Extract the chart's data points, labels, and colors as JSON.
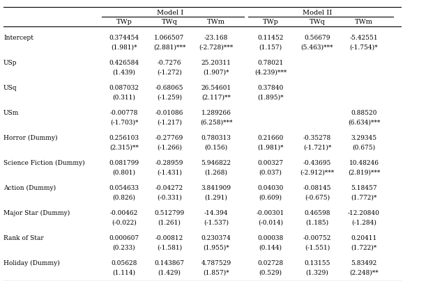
{
  "model1_header": "Model I",
  "model2_header": "Model II",
  "col_headers": [
    "TWp",
    "TWq",
    "TWm",
    "TWp",
    "TWq",
    "TWm"
  ],
  "rows": [
    {
      "label": "Intercept",
      "vals": [
        "0.374454",
        "1.066507",
        "-23.168",
        "0.11452",
        "0.56679",
        "-5.42551"
      ],
      "tstats": [
        "(1.981)*",
        "(2.881)***",
        "(-2.728)***",
        "(1.157)",
        "(5.463)***",
        "(-1.754)*"
      ]
    },
    {
      "label": "USp",
      "vals": [
        "0.426584",
        "-0.7276",
        "25.20311",
        "0.78021",
        "",
        ""
      ],
      "tstats": [
        "(1.439)",
        "(-1.272)",
        "(1.907)*",
        "(4.239)***",
        "",
        ""
      ]
    },
    {
      "label": "USq",
      "vals": [
        "0.087032",
        "-0.68065",
        "26.54601",
        "0.37840",
        "",
        ""
      ],
      "tstats": [
        "(0.311)",
        "(-1.259)",
        "(2.117)**",
        "(1.895)*",
        "",
        ""
      ]
    },
    {
      "label": "USm",
      "vals": [
        "-0.00778",
        "-0.01086",
        "1.289266",
        "",
        "",
        "0.88520"
      ],
      "tstats": [
        "(-1.703)*",
        "(-1.217)",
        "(6.258)***",
        "",
        "",
        "(6.634)***"
      ]
    },
    {
      "label": "Horror (Dummy)",
      "vals": [
        "0.256103",
        "-0.27769",
        "0.780313",
        "0.21660",
        "-0.35278",
        "3.29345"
      ],
      "tstats": [
        "(2.315)**",
        "(-1.266)",
        "(0.156)",
        "(1.981)*",
        "(-1.721)*",
        "(0.675)"
      ]
    },
    {
      "label": "Science Fiction (Dummy)",
      "vals": [
        "0.081799",
        "-0.28959",
        "5.946822",
        "0.00327",
        "-0.43695",
        "10.48246"
      ],
      "tstats": [
        "(0.801)",
        "(-1.431)",
        "(1.268)",
        "(0.037)",
        "(-2.912)***",
        "(2.819)***"
      ]
    },
    {
      "label": "Action (Dummy)",
      "vals": [
        "0.054633",
        "-0.04272",
        "3.841909",
        "0.04030",
        "-0.08145",
        "5.18457"
      ],
      "tstats": [
        "(0.826)",
        "(-0.331)",
        "(1.291)",
        "(0.609)",
        "(-0.675)",
        "(1.772)*"
      ]
    },
    {
      "label": "Major Star (Dummy)",
      "vals": [
        "-0.00462",
        "0.512799",
        "-14.394",
        "-0.00301",
        "0.46598",
        "-12.20840"
      ],
      "tstats": [
        "(-0.022)",
        "(1.261)",
        "(-1.537)",
        "(-0.014)",
        "(1.185)",
        "(-1.284)"
      ]
    },
    {
      "label": "Rank of Star",
      "vals": [
        "0.000607",
        "-0.00812",
        "0.230374",
        "0.00038",
        "-0.00752",
        "0.20411"
      ],
      "tstats": [
        "(0.233)",
        "(-1.581)",
        "(1.955)*",
        "(0.144)",
        "(-1.551)",
        "(1.722)*"
      ]
    },
    {
      "label": "Holiday (Dummy)",
      "vals": [
        "0.05628",
        "0.143867",
        "4.787529",
        "0.02728",
        "0.13155",
        "5.83492"
      ],
      "tstats": [
        "(1.114)",
        "(1.429)",
        "(1.857)*",
        "(0.529)",
        "(1.329)",
        "(2.248)**"
      ]
    }
  ],
  "bg_color": "#ffffff",
  "text_color": "#000000",
  "font_size": 6.5,
  "header_font_size": 7.0
}
